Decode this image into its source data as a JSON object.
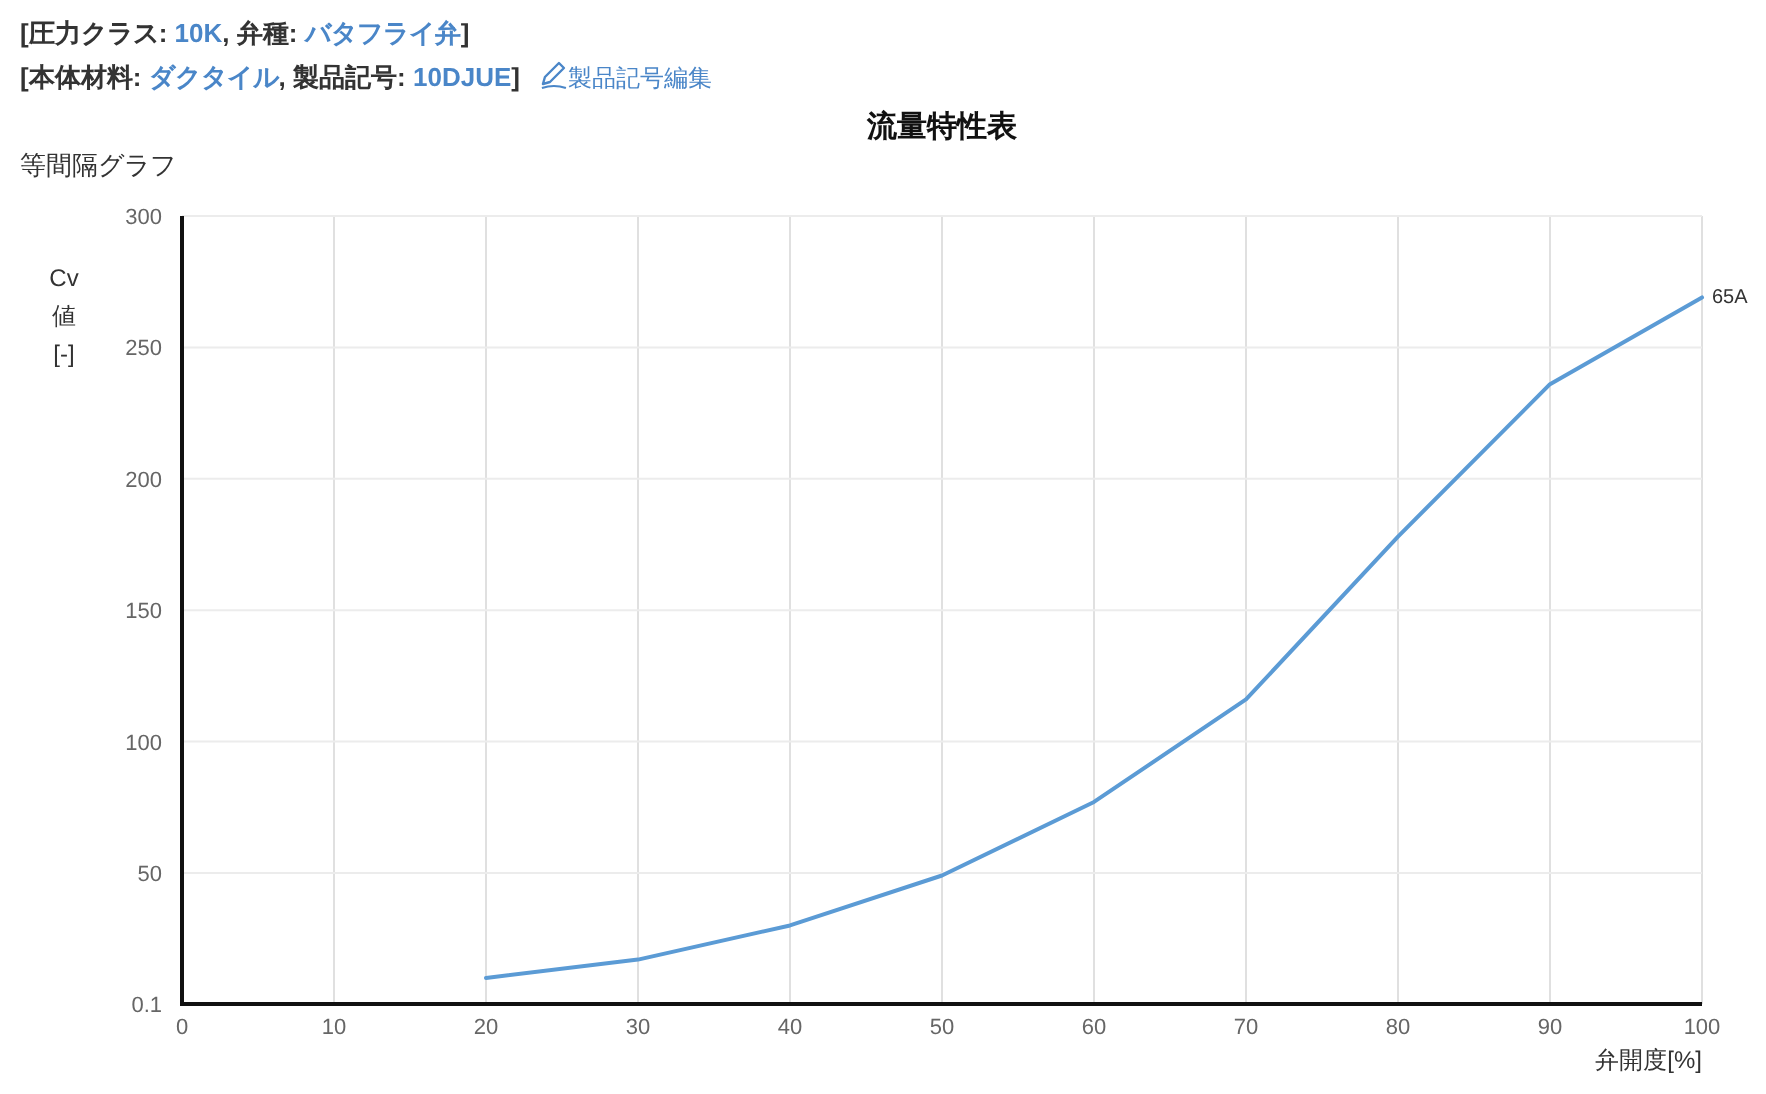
{
  "chart_data": {
    "type": "line",
    "title": "流量特性表",
    "xlabel": "弁開度[%]",
    "ylabel": "Cv 値 [-]",
    "annotations": [
      "[圧力クラス: 10K, 弁種: バタフライ弁]",
      "[本体材料: ダクタイル, 製品記号: 10DJUE]",
      "製品記号編集",
      "等間隔グラフ"
    ],
    "x": [
      20,
      30,
      40,
      50,
      60,
      70,
      80,
      90,
      100
    ],
    "series": [
      {
        "name": "65A",
        "color": "#5b9bd5",
        "values": [
          10,
          17,
          30,
          49,
          77,
          116,
          178,
          236,
          269
        ]
      }
    ],
    "xlim": [
      0,
      100
    ],
    "xticks": [
      0,
      10,
      20,
      30,
      40,
      50,
      60,
      70,
      80,
      90,
      100
    ],
    "ylim": [
      0.1,
      300
    ],
    "yticks": [
      0.1,
      50,
      100,
      150,
      200,
      250,
      300
    ],
    "grid": true,
    "legend": false,
    "marker": "none",
    "line_style": "solid"
  }
}
